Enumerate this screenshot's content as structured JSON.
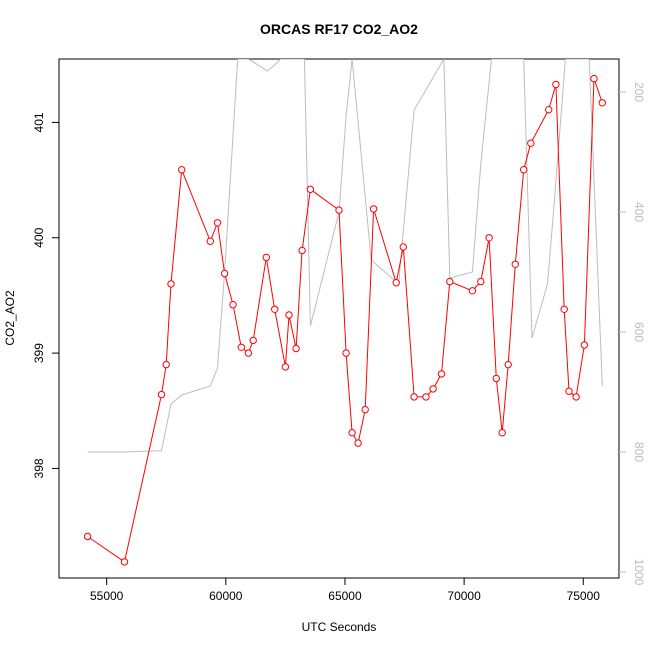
{
  "chart_data": {
    "type": "line",
    "title": "ORCAS RF17 CO2_AO2",
    "xlabel": "UTC Seconds",
    "ylabel": "CO2_AO2",
    "y2label": "",
    "xlim": [
      53000,
      76500
    ],
    "ylim": [
      397.05,
      401.55
    ],
    "y2lim": [
      1010,
      145
    ],
    "x_ticks": [
      55000,
      60000,
      65000,
      70000,
      75000
    ],
    "y_ticks": [
      398,
      399,
      400,
      401
    ],
    "y2_ticks": [
      200,
      400,
      600,
      800,
      1000
    ],
    "grid": false,
    "series": [
      {
        "axis": "left",
        "color": "#ff0000",
        "marker": "open-circle",
        "x": [
          54200,
          55750,
          57300,
          57500,
          57700,
          58150,
          59350,
          59650,
          59950,
          60300,
          60650,
          60950,
          61150,
          61700,
          62050,
          62500,
          62650,
          62950,
          63200,
          63550,
          64750,
          65050,
          65300,
          65550,
          65850,
          66200,
          67150,
          67450,
          67900,
          68400,
          68700,
          69050,
          69400,
          70350,
          70700,
          71050,
          71350,
          71600,
          71850,
          72150,
          72500,
          72800,
          73550,
          73850,
          74200,
          74400,
          74700,
          75050,
          75450,
          75800
        ],
        "y": [
          397.41,
          397.19,
          398.64,
          398.9,
          399.6,
          400.59,
          399.97,
          400.13,
          399.69,
          399.42,
          399.05,
          399.0,
          399.11,
          399.83,
          399.38,
          398.88,
          399.33,
          399.04,
          399.89,
          400.42,
          400.24,
          399.0,
          398.31,
          398.22,
          398.51,
          400.25,
          399.61,
          399.92,
          398.62,
          398.62,
          398.69,
          398.82,
          399.62,
          399.54,
          399.62,
          400.0,
          398.78,
          398.31,
          398.9,
          399.77,
          400.59,
          400.82,
          401.11,
          401.33,
          399.38,
          398.67,
          398.62,
          399.07,
          401.38,
          401.17
        ]
      },
      {
        "axis": "right",
        "color": "#bdbdbd",
        "marker": "none",
        "x": [
          54200,
          55750,
          57300,
          57700,
          58150,
          59350,
          59650,
          59950,
          60500,
          60950,
          61750,
          62050,
          62300,
          62800,
          63300,
          63550,
          64750,
          65050,
          65300,
          66100,
          67250,
          67900,
          69150,
          69400,
          70350,
          70700,
          71150,
          71650,
          72100,
          72500,
          72850,
          73500,
          73750,
          74250,
          74500,
          75250,
          75800
        ],
        "y": [
          800,
          800,
          798,
          720,
          705,
          690,
          660,
          500,
          145,
          145,
          165,
          155,
          145,
          145,
          145,
          590,
          400,
          240,
          145,
          480,
          520,
          230,
          145,
          510,
          500,
          320,
          145,
          145,
          145,
          145,
          610,
          520,
          400,
          145,
          145,
          145,
          690
        ]
      }
    ]
  }
}
